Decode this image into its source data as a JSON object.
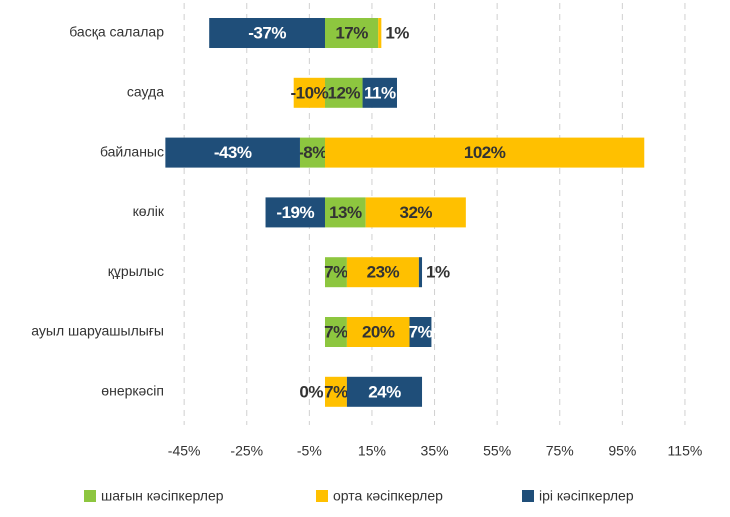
{
  "chart_data": {
    "type": "bar",
    "orientation": "horizontal",
    "stacked": true,
    "categories": [
      "басқа салалар",
      "сауда",
      "байланыс",
      "көлік",
      "құрылыс",
      "ауыл шаруашылығы",
      "өнеркәсіп"
    ],
    "series": [
      {
        "name": "шағын кәсіпкерлер",
        "color": "#8dc63f",
        "values": [
          17,
          12,
          -8,
          13,
          7,
          7,
          0
        ],
        "value_labels": [
          "17%",
          "12%",
          "-8%",
          "13%",
          "7%",
          "7%",
          "0%"
        ]
      },
      {
        "name": "орта кәсіпкерлер",
        "color": "#ffc000",
        "values": [
          1,
          -10,
          102,
          32,
          23,
          20,
          7
        ],
        "value_labels": [
          "1%",
          "-10%",
          "102%",
          "32%",
          "23%",
          "20%",
          "7%"
        ]
      },
      {
        "name": "ірі кәсіпкерлер",
        "color": "#1f4e79",
        "values": [
          -37,
          11,
          -43,
          -19,
          1,
          7,
          24
        ],
        "value_labels": [
          "-37%",
          "11%",
          "-43%",
          "-19%",
          "1%",
          "7%",
          "24%"
        ]
      }
    ],
    "xlim": [
      -46,
      120
    ],
    "xticks": [
      {
        "value": -45,
        "label": "-45%"
      },
      {
        "value": -25,
        "label": "-25%"
      },
      {
        "value": -5,
        "label": "-5%"
      },
      {
        "value": 15,
        "label": "15%"
      },
      {
        "value": 35,
        "label": "35%"
      },
      {
        "value": 55,
        "label": "55%"
      },
      {
        "value": 75,
        "label": "75%"
      },
      {
        "value": 95,
        "label": "95%"
      },
      {
        "value": 115,
        "label": "115%"
      }
    ],
    "grid": true,
    "legend": "bottom"
  }
}
